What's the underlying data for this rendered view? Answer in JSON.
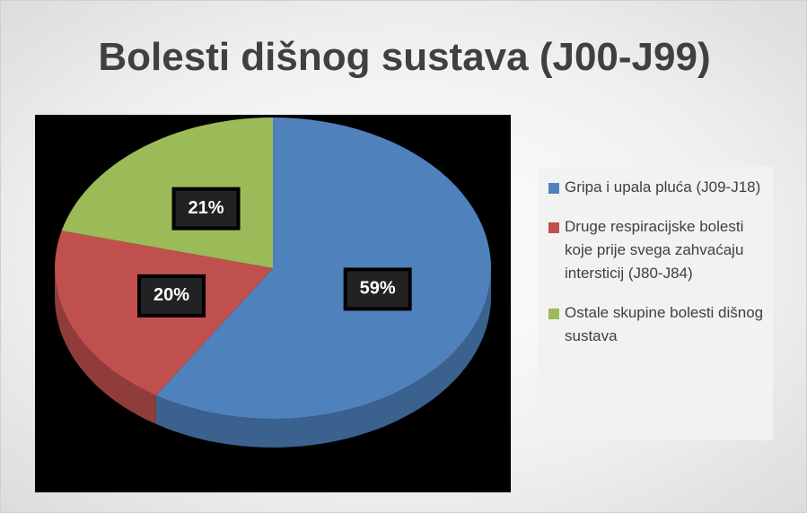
{
  "chart_data": {
    "type": "pie",
    "title": "Bolesti dišnog sustava (J00-J99)",
    "categories": [
      "Gripa i upala pluća (J09-J18)",
      "Druge respiracijske bolesti koje prije svega zahvaćaju intersticij (J80-J84)",
      "Ostale skupine bolesti dišnog sustava"
    ],
    "values": [
      59,
      20,
      21
    ],
    "value_labels": [
      "59%",
      "20%",
      "21%"
    ],
    "colors": [
      "#4f81bd",
      "#c0504d",
      "#9bbb59"
    ],
    "legend": "right"
  }
}
